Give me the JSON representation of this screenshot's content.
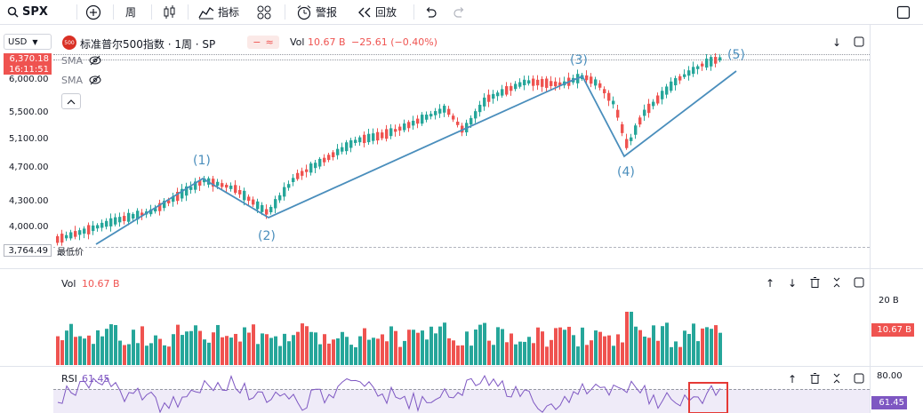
{
  "toolbar": {
    "symbol": "SPX",
    "interval": "周",
    "indicators": "指标",
    "alerts": "警报",
    "replay": "回放"
  },
  "legend": {
    "currency": "USD",
    "badge": "500",
    "title": "标准普尔500指数 · 1周 · SP",
    "vol_prefix": "Vol",
    "vol_value": "10.67 B",
    "change": "−25.61 (−0.40%)",
    "sma1": "SMA",
    "sma2": "SMA"
  },
  "price_axis": {
    "labels": [
      "6,000.00",
      "5,500.00",
      "5,100.00",
      "4,700.00",
      "4,300.00",
      "4,000.00"
    ],
    "current_price": "6,370.18",
    "countdown": "16:11:51",
    "low_value": "3,764.49",
    "low_label": "最低价"
  },
  "waves": [
    "(1)",
    "(2)",
    "(3)",
    "(4)",
    "(5)"
  ],
  "volume": {
    "title": "Vol",
    "value": "10.67 B",
    "scale_label": "20 B",
    "current_tag": "10.67 B"
  },
  "rsi": {
    "title": "RSI",
    "value": "61.45",
    "upper_label": "80.00",
    "current_tag": "61.45"
  },
  "colors": {
    "up": "#26a69a",
    "down": "#ef5350",
    "wave": "#4a8ebc",
    "rsi": "#7e57c2"
  }
}
